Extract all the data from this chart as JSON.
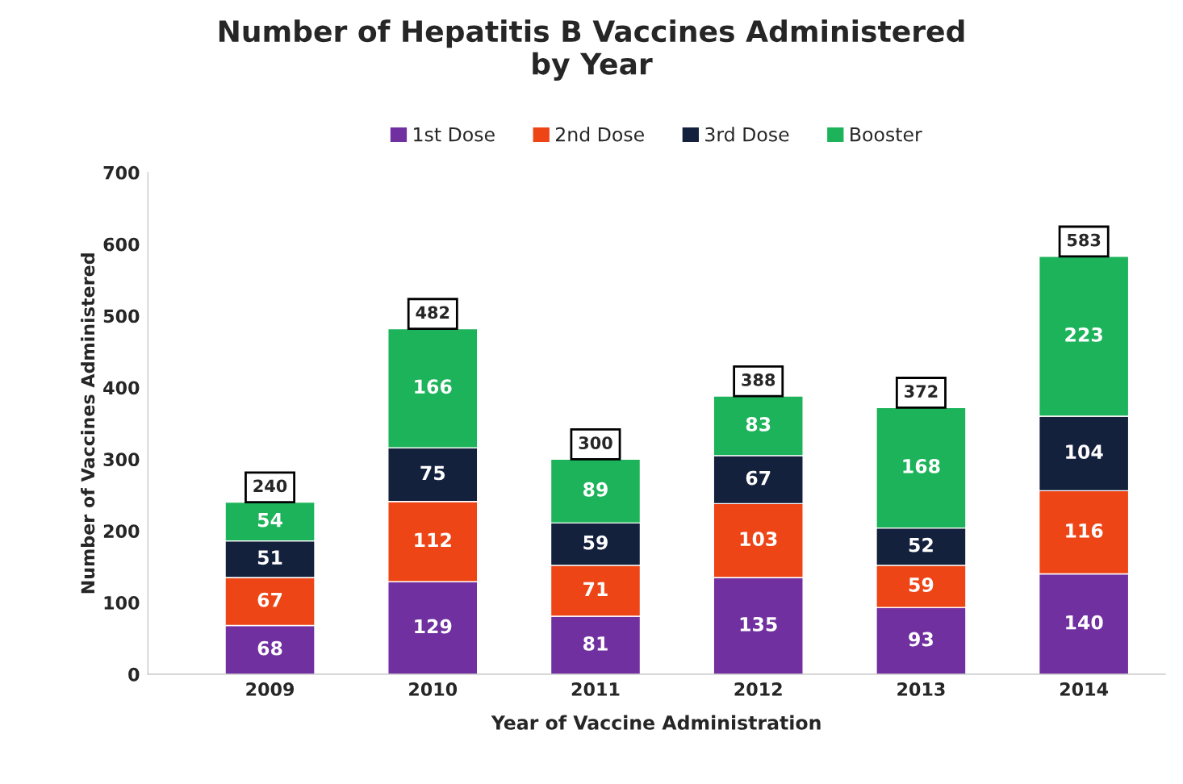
{
  "chart_data": {
    "type": "bar",
    "title": "Number of Hepatitis B Vaccines Administered\nby Year",
    "xlabel": "Year of Vaccine Administration",
    "ylabel": "Number of Vaccines Administered",
    "categories": [
      "2009",
      "2010",
      "2011",
      "2012",
      "2013",
      "2014"
    ],
    "series": [
      {
        "name": "1st Dose",
        "color": "#7030a0",
        "values": [
          68,
          129,
          81,
          135,
          93,
          140
        ]
      },
      {
        "name": "2nd Dose",
        "color": "#ee4517",
        "values": [
          67,
          112,
          71,
          103,
          59,
          116
        ]
      },
      {
        "name": "3rd Dose",
        "color": "#14213d",
        "values": [
          51,
          75,
          59,
          67,
          52,
          104
        ]
      },
      {
        "name": "Booster",
        "color": "#1db35a",
        "values": [
          54,
          166,
          89,
          83,
          168,
          223
        ]
      }
    ],
    "stacked": true,
    "data_labels": true,
    "totals": [
      "240",
      "482",
      "300",
      "388",
      "372",
      "583"
    ],
    "ylim": [
      0,
      700
    ],
    "yticks": [
      0,
      100,
      200,
      300,
      400,
      500,
      600,
      700
    ],
    "legend": "top"
  }
}
